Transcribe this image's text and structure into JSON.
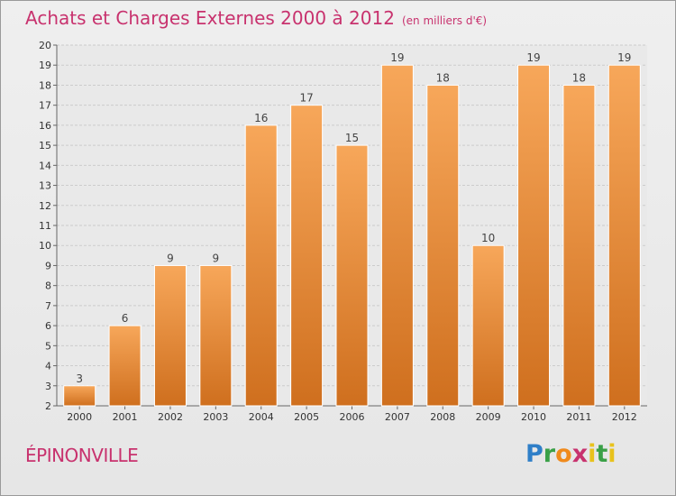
{
  "header": {
    "title": "Achats et Charges Externes 2000 à 2012",
    "subtitle": "(en milliers d'€)"
  },
  "commune": "ÉPINONVILLE",
  "logo": {
    "text": "Proxiti"
  },
  "colors": {
    "accent": "#c8326e",
    "bar_top": "#f7a75a",
    "bar_bottom": "#cf6f1e",
    "grid": "#cccccc"
  },
  "chart_data": {
    "type": "bar",
    "title": "Achats et Charges Externes 2000 à 2012",
    "subtitle": "(en milliers d'€)",
    "categories": [
      "2000",
      "2001",
      "2002",
      "2003",
      "2004",
      "2005",
      "2006",
      "2007",
      "2008",
      "2009",
      "2010",
      "2011",
      "2012"
    ],
    "values": [
      3,
      6,
      9,
      9,
      16,
      17,
      15,
      19,
      18,
      10,
      19,
      18,
      19
    ],
    "xlabel": "",
    "ylabel": "",
    "ylim": [
      2,
      20
    ],
    "yticks": [
      2,
      3,
      4,
      5,
      6,
      7,
      8,
      9,
      10,
      11,
      12,
      13,
      14,
      15,
      16,
      17,
      18,
      19,
      20
    ],
    "grid": true,
    "data_labels": true,
    "legend": "none"
  }
}
